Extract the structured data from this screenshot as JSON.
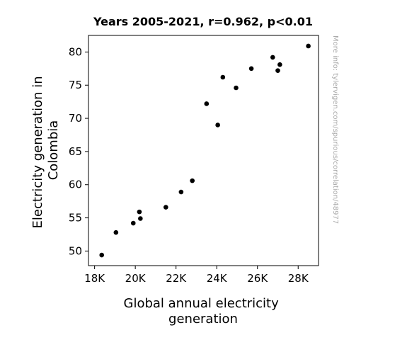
{
  "chart_data": {
    "type": "scatter",
    "title": "Years 2005-2021, r=0.962, p<0.01",
    "xlabel": [
      "Global annual electricity",
      "generation"
    ],
    "ylabel": [
      "Electricity generation in",
      "Colombia"
    ],
    "watermark": "More info: tylervigen.com/spurious/correlation/48977",
    "xlim": [
      17700,
      29000
    ],
    "ylim": [
      47.8,
      82.5
    ],
    "xticks": [
      {
        "value": 18000,
        "label": "18K"
      },
      {
        "value": 20000,
        "label": "20K"
      },
      {
        "value": 22000,
        "label": "22K"
      },
      {
        "value": 24000,
        "label": "24K"
      },
      {
        "value": 26000,
        "label": "26K"
      },
      {
        "value": 28000,
        "label": "28K"
      }
    ],
    "yticks": [
      {
        "value": 50,
        "label": "50"
      },
      {
        "value": 55,
        "label": "55"
      },
      {
        "value": 60,
        "label": "60"
      },
      {
        "value": 65,
        "label": "65"
      },
      {
        "value": 70,
        "label": "70"
      },
      {
        "value": 75,
        "label": "75"
      },
      {
        "value": 80,
        "label": "80"
      }
    ],
    "grid": false,
    "marker_color": "#000000",
    "points": [
      {
        "x": 18350,
        "y": 49.4
      },
      {
        "x": 19050,
        "y": 52.8
      },
      {
        "x": 19900,
        "y": 54.2
      },
      {
        "x": 20200,
        "y": 55.9
      },
      {
        "x": 20250,
        "y": 54.9
      },
      {
        "x": 21500,
        "y": 56.6
      },
      {
        "x": 22250,
        "y": 58.9
      },
      {
        "x": 22800,
        "y": 60.6
      },
      {
        "x": 23500,
        "y": 72.2
      },
      {
        "x": 24050,
        "y": 69.0
      },
      {
        "x": 24300,
        "y": 76.2
      },
      {
        "x": 24950,
        "y": 74.6
      },
      {
        "x": 25700,
        "y": 77.5
      },
      {
        "x": 26750,
        "y": 79.2
      },
      {
        "x": 27000,
        "y": 77.2
      },
      {
        "x": 27100,
        "y": 78.1
      },
      {
        "x": 28500,
        "y": 80.9
      }
    ]
  }
}
